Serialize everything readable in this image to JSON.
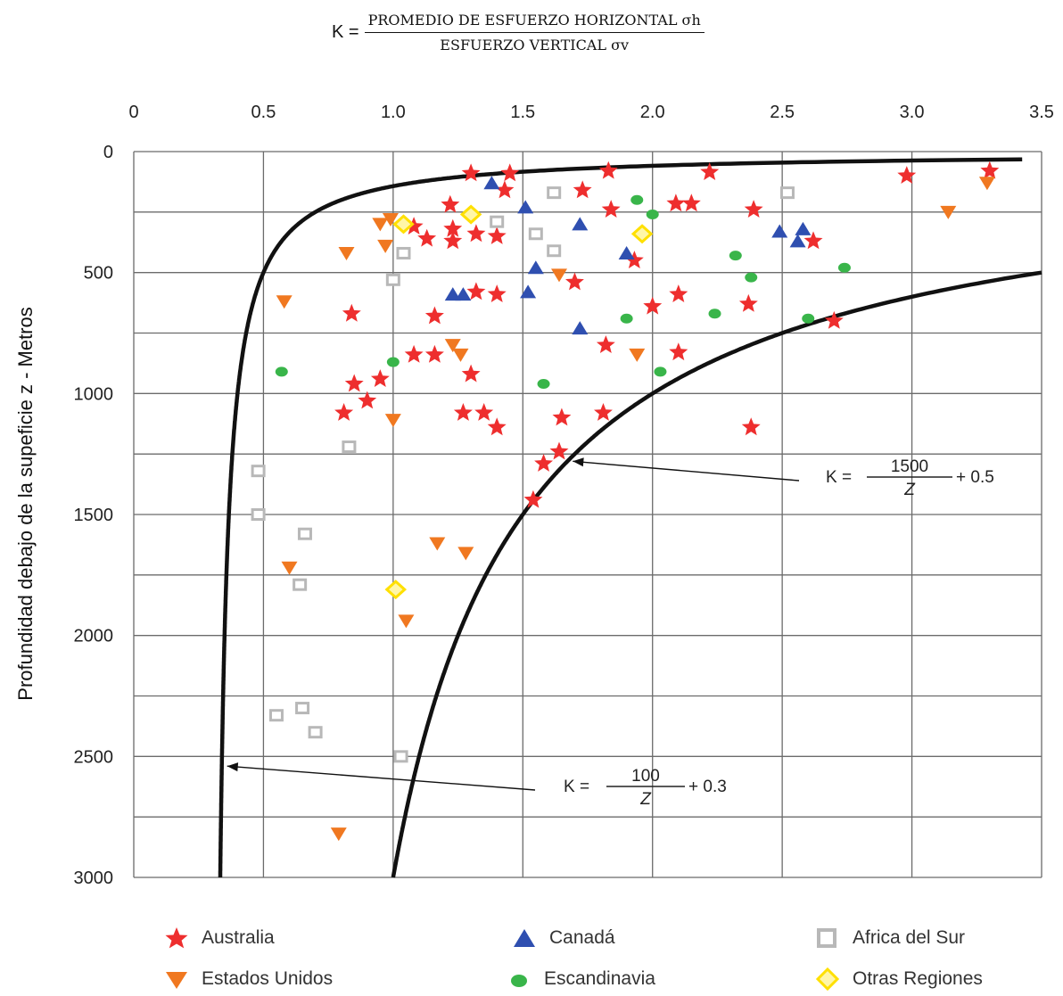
{
  "title": {
    "lhs": "K =",
    "numerator": "PROMEDIO DE ESFUERZO HORIZONTAL σh",
    "denominator": "ESFUERZO VERTICAL σv"
  },
  "chart_data": {
    "type": "scatter",
    "x_axis_position": "top",
    "x_ticks": [
      "0",
      "0.5",
      "1.0",
      "1.5",
      "2.0",
      "2.5",
      "3.0",
      "3.5"
    ],
    "y_ticks": [
      "0",
      "500",
      "1000",
      "1500",
      "2000",
      "2500",
      "3000"
    ],
    "xlim": [
      0,
      3.5
    ],
    "ylim": [
      0,
      3000
    ],
    "y_inverted": true,
    "ylabel": "Profundidad debajo de la supeficie z - Metros",
    "grid": true,
    "series": [
      {
        "name": "Australia",
        "marker": "star",
        "color": "#ee2e2e",
        "points": [
          [
            1.3,
            90
          ],
          [
            1.45,
            90
          ],
          [
            1.83,
            80
          ],
          [
            2.22,
            85
          ],
          [
            2.98,
            100
          ],
          [
            3.3,
            80
          ],
          [
            1.43,
            160
          ],
          [
            1.73,
            160
          ],
          [
            1.22,
            220
          ],
          [
            1.84,
            240
          ],
          [
            2.09,
            215
          ],
          [
            2.15,
            215
          ],
          [
            2.39,
            240
          ],
          [
            1.23,
            320
          ],
          [
            1.13,
            360
          ],
          [
            1.23,
            370
          ],
          [
            1.32,
            340
          ],
          [
            1.4,
            350
          ],
          [
            1.08,
            310
          ],
          [
            2.62,
            370
          ],
          [
            1.93,
            450
          ],
          [
            1.7,
            540
          ],
          [
            1.32,
            580
          ],
          [
            1.4,
            590
          ],
          [
            2.1,
            590
          ],
          [
            1.16,
            680
          ],
          [
            0.84,
            670
          ],
          [
            2.0,
            640
          ],
          [
            2.37,
            630
          ],
          [
            2.7,
            700
          ],
          [
            1.82,
            800
          ],
          [
            1.08,
            840
          ],
          [
            1.16,
            840
          ],
          [
            2.1,
            830
          ],
          [
            1.3,
            920
          ],
          [
            0.95,
            940
          ],
          [
            0.85,
            960
          ],
          [
            0.9,
            1030
          ],
          [
            0.81,
            1080
          ],
          [
            1.27,
            1080
          ],
          [
            1.35,
            1080
          ],
          [
            1.81,
            1080
          ],
          [
            1.65,
            1100
          ],
          [
            1.4,
            1140
          ],
          [
            2.38,
            1140
          ],
          [
            1.64,
            1240
          ],
          [
            1.58,
            1290
          ],
          [
            1.54,
            1440
          ]
        ]
      },
      {
        "name": "Canadá",
        "marker": "triangle-up",
        "color": "#2f4fb0",
        "points": [
          [
            1.38,
            130
          ],
          [
            1.51,
            230
          ],
          [
            1.72,
            300
          ],
          [
            2.49,
            330
          ],
          [
            2.58,
            320
          ],
          [
            2.56,
            370
          ],
          [
            1.9,
            420
          ],
          [
            1.55,
            480
          ],
          [
            1.23,
            590
          ],
          [
            1.27,
            590
          ],
          [
            1.52,
            580
          ],
          [
            1.72,
            730
          ]
        ]
      },
      {
        "name": "Africa del Sur",
        "marker": "square",
        "color": "#b8b8b8",
        "points": [
          [
            1.62,
            170
          ],
          [
            2.52,
            170
          ],
          [
            1.4,
            290
          ],
          [
            1.55,
            340
          ],
          [
            1.62,
            410
          ],
          [
            1.04,
            420
          ],
          [
            1.0,
            530
          ],
          [
            0.83,
            1220
          ],
          [
            0.48,
            1320
          ],
          [
            0.48,
            1500
          ],
          [
            0.66,
            1580
          ],
          [
            0.64,
            1790
          ],
          [
            0.55,
            2330
          ],
          [
            0.65,
            2300
          ],
          [
            0.7,
            2400
          ],
          [
            1.03,
            2500
          ]
        ]
      },
      {
        "name": "Estados Unidos",
        "marker": "triangle-down",
        "color": "#f07820",
        "points": [
          [
            3.29,
            130
          ],
          [
            3.14,
            250
          ],
          [
            0.99,
            280
          ],
          [
            0.95,
            300
          ],
          [
            0.97,
            390
          ],
          [
            0.82,
            420
          ],
          [
            1.64,
            510
          ],
          [
            0.58,
            620
          ],
          [
            1.23,
            800
          ],
          [
            1.26,
            840
          ],
          [
            1.94,
            840
          ],
          [
            1.0,
            1110
          ],
          [
            1.17,
            1620
          ],
          [
            1.28,
            1660
          ],
          [
            0.6,
            1720
          ],
          [
            1.05,
            1940
          ],
          [
            0.79,
            2820
          ]
        ]
      },
      {
        "name": "Escandinavia",
        "marker": "circle",
        "color": "#39b54a",
        "points": [
          [
            1.94,
            200
          ],
          [
            2.0,
            260
          ],
          [
            2.32,
            430
          ],
          [
            2.74,
            480
          ],
          [
            2.38,
            520
          ],
          [
            2.24,
            670
          ],
          [
            1.9,
            690
          ],
          [
            2.6,
            690
          ],
          [
            1.0,
            870
          ],
          [
            2.03,
            910
          ],
          [
            0.57,
            910
          ],
          [
            1.58,
            960
          ]
        ]
      },
      {
        "name": "Otras Regiones",
        "marker": "diamond",
        "color": "#ffe000",
        "points": [
          [
            1.3,
            260
          ],
          [
            1.04,
            300
          ],
          [
            1.96,
            340
          ],
          [
            1.01,
            1810
          ]
        ]
      }
    ],
    "curves": [
      {
        "label_lhs": "K =",
        "label_num": "100",
        "label_den": "Z",
        "label_rhs": "+ 0.3",
        "numerator_value": 100,
        "offset": 0.3
      },
      {
        "label_lhs": "K =",
        "label_num": "1500",
        "label_den": "Z",
        "label_rhs": "+ 0.5",
        "numerator_value": 1500,
        "offset": 0.5
      }
    ]
  }
}
